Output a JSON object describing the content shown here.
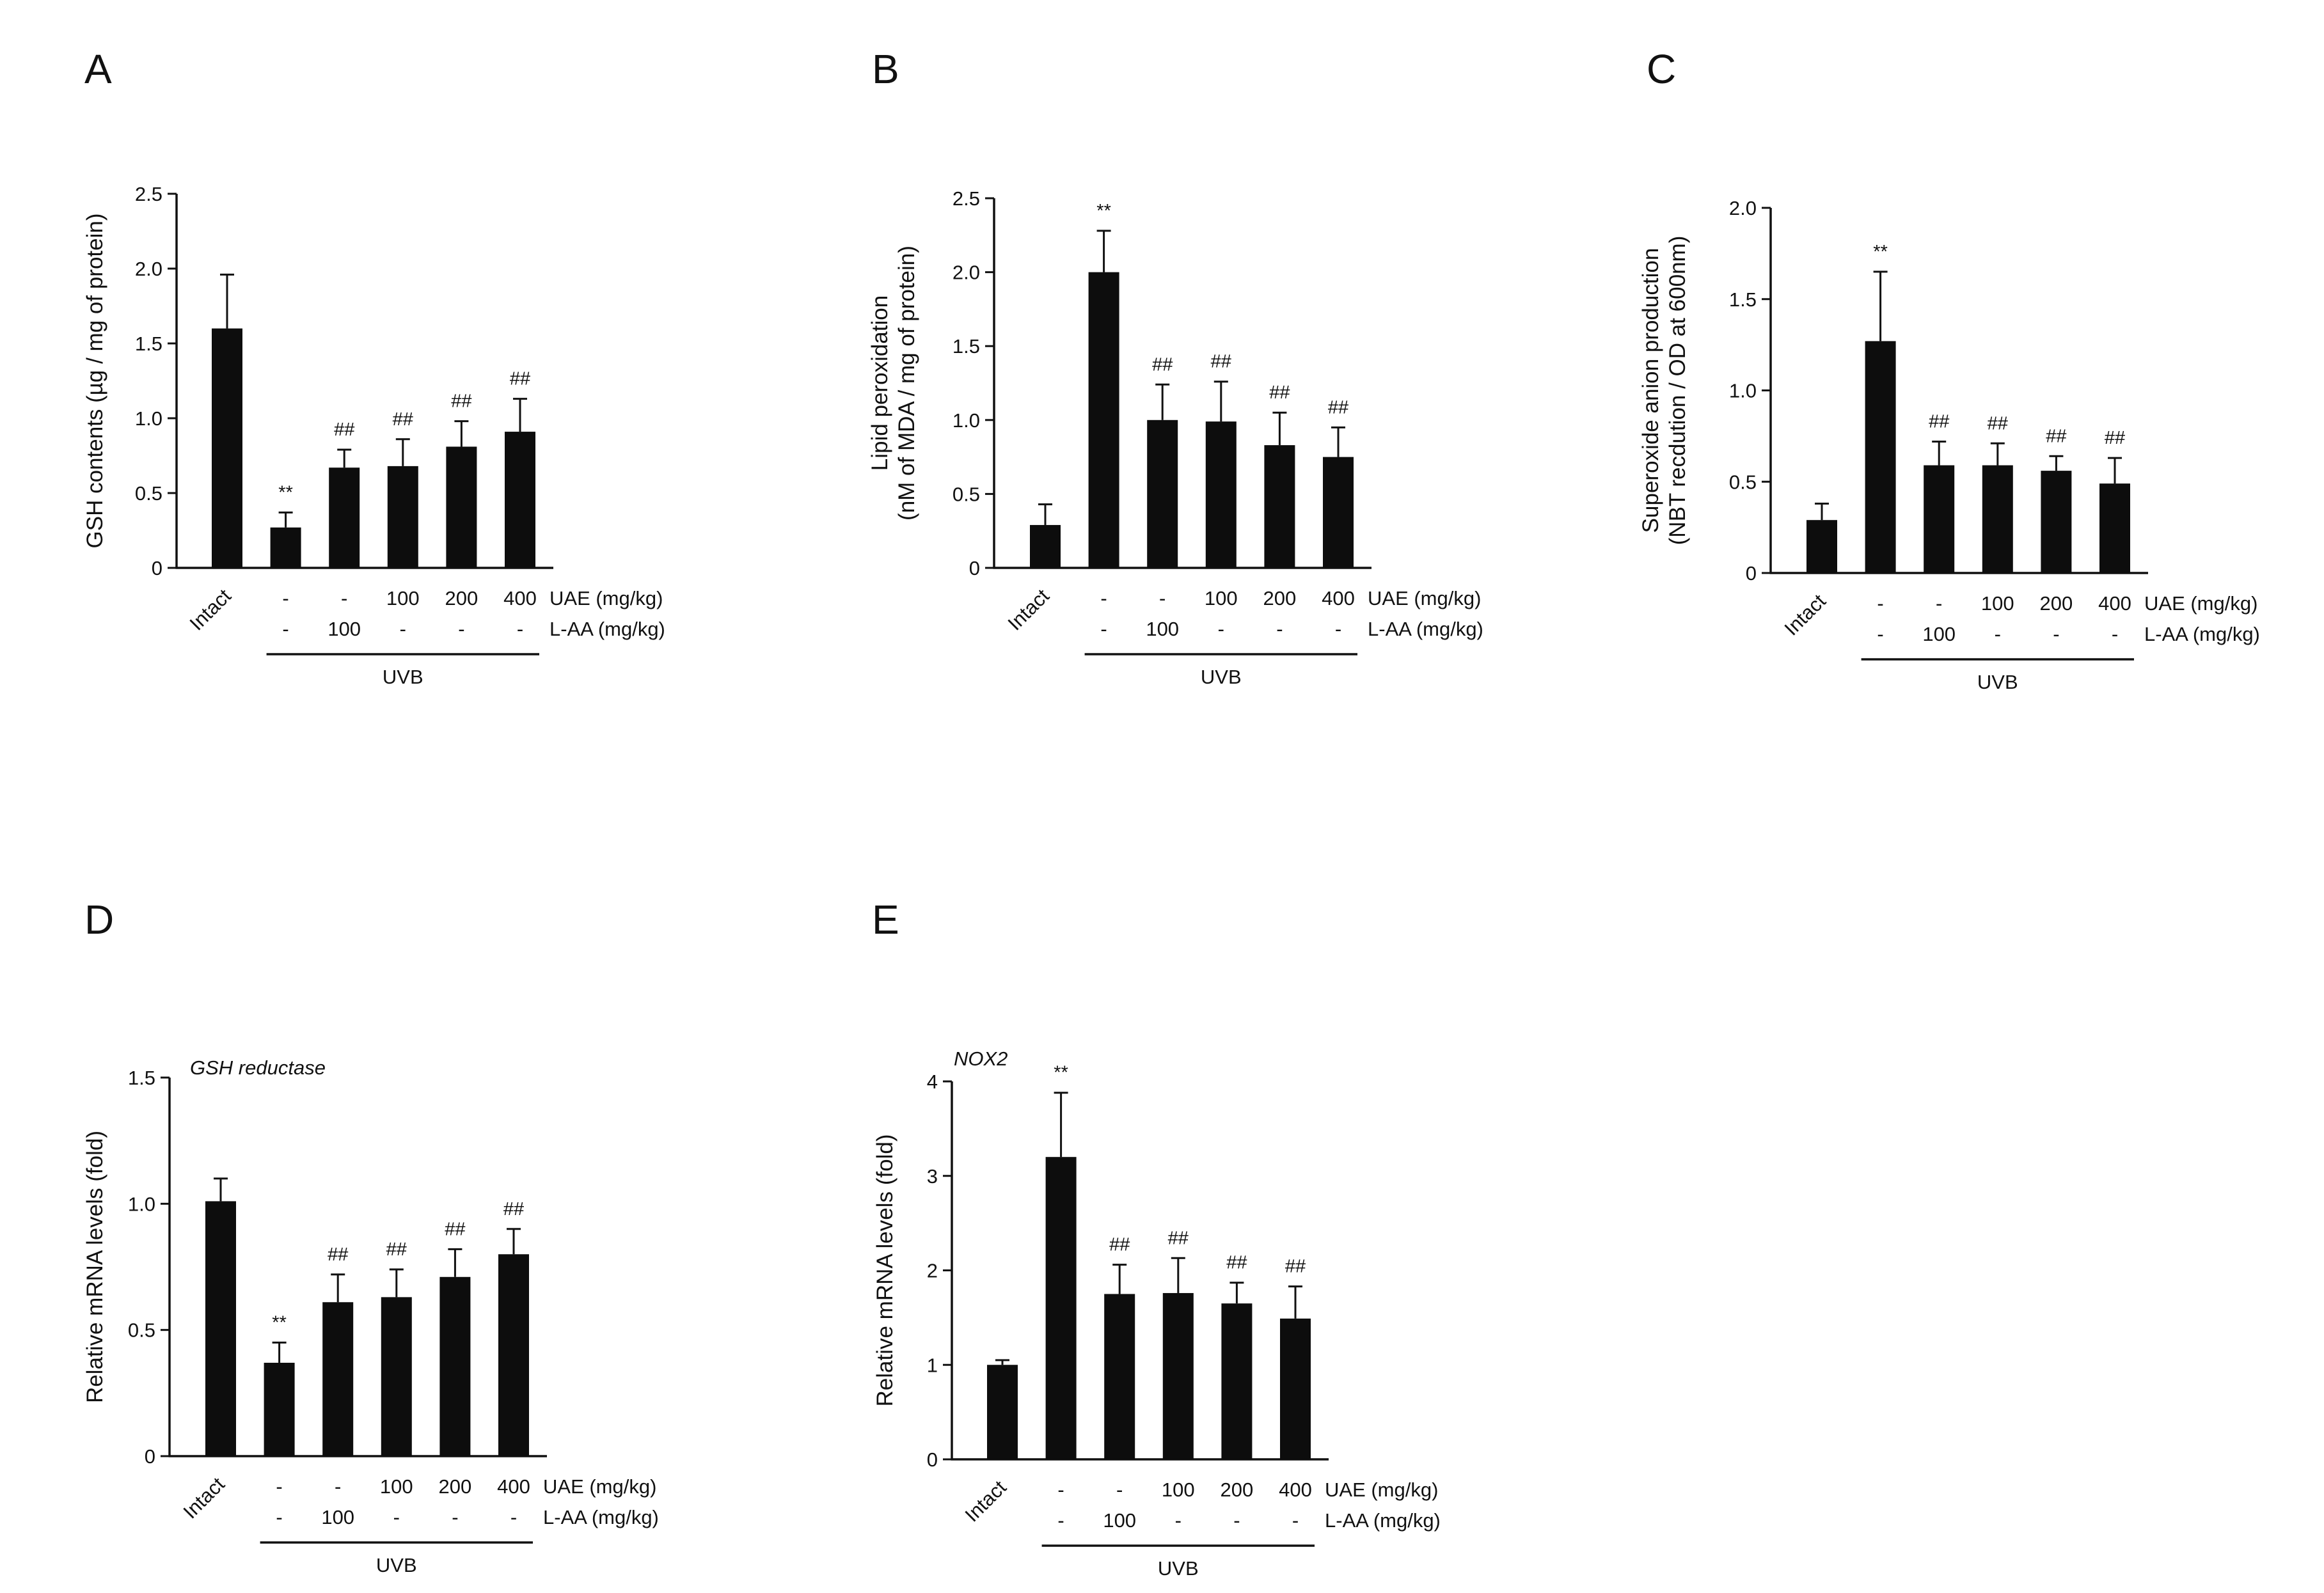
{
  "figure": {
    "treatment_rows": [
      "UAE (mg/kg)",
      "L-AA (mg/kg)"
    ],
    "group_label": "UVB"
  },
  "chart_data": [
    {
      "panel": "A",
      "type": "bar",
      "title": "",
      "ylabel": [
        "GSH contents (µg / mg of protein)"
      ],
      "ylim": [
        0,
        2.5
      ],
      "yticks": [
        "0",
        "0.5",
        "1.0",
        "1.5",
        "2.0",
        "2.5"
      ],
      "categories": [
        "Intact",
        "UAE -, L-AA -",
        "UAE -, L-AA 100",
        "UAE 100, L-AA -",
        "UAE 200, L-AA -",
        "UAE 400, L-AA -"
      ],
      "x_first_label": "Intact",
      "uae": [
        "-",
        "-",
        "100",
        "200",
        "400"
      ],
      "laa": [
        "-",
        "100",
        "-",
        "-",
        "-"
      ],
      "values": [
        1.6,
        0.27,
        0.67,
        0.68,
        0.81,
        0.91
      ],
      "errors": [
        0.36,
        0.1,
        0.12,
        0.18,
        0.17,
        0.22
      ],
      "annotations": [
        "",
        "**",
        "##",
        "##",
        "##",
        "##"
      ]
    },
    {
      "panel": "B",
      "type": "bar",
      "title": "",
      "ylabel": [
        "Lipid peroxidation",
        "(nM of MDA / mg of protein)"
      ],
      "ylim": [
        0,
        2.5
      ],
      "yticks": [
        "0",
        "0.5",
        "1.0",
        "1.5",
        "2.0",
        "2.5"
      ],
      "categories": [
        "Intact",
        "UAE -, L-AA -",
        "UAE -, L-AA 100",
        "UAE 100, L-AA -",
        "UAE 200, L-AA -",
        "UAE 400, L-AA -"
      ],
      "x_first_label": "Intact",
      "uae": [
        "-",
        "-",
        "100",
        "200",
        "400"
      ],
      "laa": [
        "-",
        "100",
        "-",
        "-",
        "-"
      ],
      "values": [
        0.29,
        2.0,
        1.0,
        0.99,
        0.83,
        0.75
      ],
      "errors": [
        0.14,
        0.28,
        0.24,
        0.27,
        0.22,
        0.2
      ],
      "annotations": [
        "",
        "**",
        "##",
        "##",
        "##",
        "##"
      ]
    },
    {
      "panel": "C",
      "type": "bar",
      "title": "",
      "ylabel": [
        "Superoxide anion production",
        "(NBT recdution / OD at 600nm)"
      ],
      "ylim": [
        0,
        2.0
      ],
      "yticks": [
        "0",
        "0.5",
        "1.0",
        "1.5",
        "2.0"
      ],
      "categories": [
        "Intact",
        "UAE -, L-AA -",
        "UAE -, L-AA 100",
        "UAE 100, L-AA -",
        "UAE 200, L-AA -",
        "UAE 400, L-AA -"
      ],
      "x_first_label": "Intact",
      "uae": [
        "-",
        "-",
        "100",
        "200",
        "400"
      ],
      "laa": [
        "-",
        "100",
        "-",
        "-",
        "-"
      ],
      "values": [
        0.29,
        1.27,
        0.59,
        0.59,
        0.56,
        0.49
      ],
      "errors": [
        0.09,
        0.38,
        0.13,
        0.12,
        0.08,
        0.14
      ],
      "annotations": [
        "",
        "**",
        "##",
        "##",
        "##",
        "##"
      ]
    },
    {
      "panel": "D",
      "type": "bar",
      "title": "GSH reductase",
      "ylabel": [
        "Relative mRNA levels (fold)"
      ],
      "ylim": [
        0,
        1.5
      ],
      "yticks": [
        "0",
        "0.5",
        "1.0",
        "1.5"
      ],
      "categories": [
        "Intact",
        "UAE -, L-AA -",
        "UAE -, L-AA 100",
        "UAE 100, L-AA -",
        "UAE 200, L-AA -",
        "UAE 400, L-AA -"
      ],
      "x_first_label": "Intact",
      "uae": [
        "-",
        "-",
        "100",
        "200",
        "400"
      ],
      "laa": [
        "-",
        "100",
        "-",
        "-",
        "-"
      ],
      "values": [
        1.01,
        0.37,
        0.61,
        0.63,
        0.71,
        0.8
      ],
      "errors": [
        0.09,
        0.08,
        0.11,
        0.11,
        0.11,
        0.1
      ],
      "annotations": [
        "",
        "**",
        "##",
        "##",
        "##",
        "##"
      ]
    },
    {
      "panel": "E",
      "type": "bar",
      "title": "NOX2",
      "ylabel": [
        "Relative mRNA levels (fold)"
      ],
      "ylim": [
        0,
        4
      ],
      "yticks": [
        "0",
        "1",
        "2",
        "3",
        "4"
      ],
      "categories": [
        "Intact",
        "UAE -, L-AA -",
        "UAE -, L-AA 100",
        "UAE 100, L-AA -",
        "UAE 200, L-AA -",
        "UAE 400, L-AA -"
      ],
      "x_first_label": "Intact",
      "uae": [
        "-",
        "-",
        "100",
        "200",
        "400"
      ],
      "laa": [
        "-",
        "100",
        "-",
        "-",
        "-"
      ],
      "values": [
        1.0,
        3.2,
        1.75,
        1.76,
        1.65,
        1.49
      ],
      "errors": [
        0.05,
        0.68,
        0.31,
        0.37,
        0.22,
        0.34
      ],
      "annotations": [
        "",
        "**",
        "##",
        "##",
        "##",
        "##"
      ]
    }
  ]
}
